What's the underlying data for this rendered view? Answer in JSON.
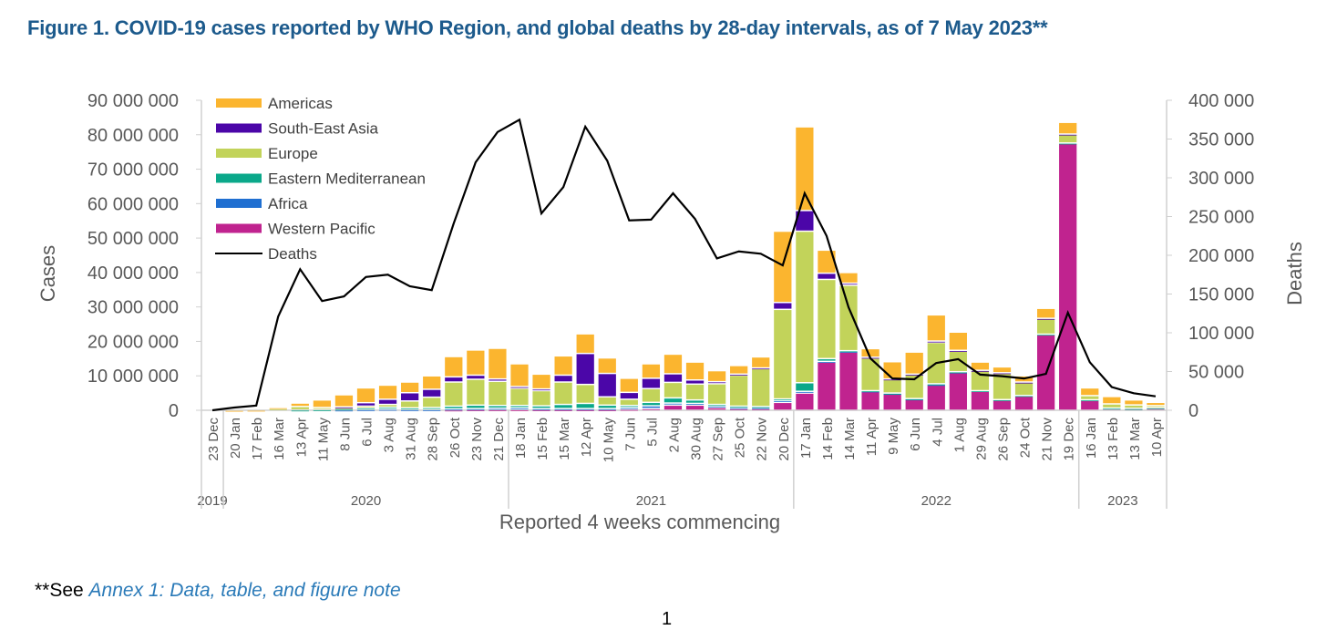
{
  "title": "Figure 1. COVID-19 cases reported by WHO Region, and global deaths by 28-day intervals, as of 7 May 2023**",
  "footnote": {
    "prefix": "**See ",
    "link": "Annex 1: Data, table, and figure note"
  },
  "page_number": "1",
  "chart_data": {
    "type": "bar",
    "stacked": true,
    "title": "Figure 1. COVID-19 cases reported by WHO Region, and global deaths by 28-day intervals, as of 7 May 2023**",
    "xlabel": "Reported 4 weeks commencing",
    "ylabel": "Cases",
    "y2label": "Deaths",
    "ylim": [
      0,
      90000000
    ],
    "y2lim": [
      0,
      400000
    ],
    "yticks": [
      "0",
      "10 000 000",
      "20 000 000",
      "30 000 000",
      "40 000 000",
      "50 000 000",
      "60 000 000",
      "70 000 000",
      "80 000 000",
      "90 000 000"
    ],
    "y2ticks": [
      "0",
      "50 000",
      "100 000",
      "150 000",
      "200 000",
      "250 000",
      "300 000",
      "350 000",
      "400 000"
    ],
    "legend_position": "top-left",
    "years": [
      {
        "label": "2019",
        "from": 0,
        "to": 0
      },
      {
        "label": "2020",
        "from": 1,
        "to": 13
      },
      {
        "label": "2021",
        "from": 14,
        "to": 26
      },
      {
        "label": "2022",
        "from": 27,
        "to": 39
      },
      {
        "label": "2023",
        "from": 40,
        "to": 43
      }
    ],
    "categories": [
      "23 Dec",
      "20 Jan",
      "17 Feb",
      "16 Mar",
      "13 Apr",
      "11 May",
      "8 Jun",
      "6 Jul",
      "3 Aug",
      "31 Aug",
      "28 Sep",
      "26 Oct",
      "23 Nov",
      "21 Dec",
      "18 Jan",
      "15 Feb",
      "15 Mar",
      "12 Apr",
      "10 May",
      "7 Jun",
      "5 Jul",
      "2 Aug",
      "30 Aug",
      "27 Sep",
      "25 Oct",
      "22 Nov",
      "20 Dec",
      "17 Jan",
      "14 Feb",
      "14 Mar",
      "11 Apr",
      "9 May",
      "6 Jun",
      "4 Jul",
      "1 Aug",
      "29 Aug",
      "26 Sep",
      "24 Oct",
      "21 Nov",
      "19 Dec",
      "16 Jan",
      "13 Feb",
      "13 Mar",
      "10 Apr"
    ],
    "unit_cases": "millions",
    "series": [
      {
        "name": "Western Pacific",
        "color": "#c0238f",
        "values": [
          0,
          0,
          0,
          0,
          0,
          0,
          0,
          0,
          0,
          0,
          0,
          0.1,
          0.2,
          0.2,
          0.2,
          0.2,
          0.2,
          0.2,
          0.2,
          0.3,
          0.5,
          1.5,
          1.5,
          0.8,
          0.5,
          0.5,
          2.3,
          5,
          14,
          17,
          5.5,
          4.8,
          3.2,
          7.4,
          11,
          5.6,
          3,
          4.2,
          22,
          77.5,
          3,
          0.6,
          0.5,
          0.7
        ]
      },
      {
        "name": "Africa",
        "color": "#1f6fd1",
        "values": [
          0,
          0,
          0,
          0,
          0,
          0,
          0.1,
          0.2,
          0.3,
          0.2,
          0.2,
          0.3,
          0.3,
          0.4,
          0.5,
          0.3,
          0.3,
          0.3,
          0.3,
          0.5,
          0.8,
          0.6,
          0.5,
          0.4,
          0.3,
          0.3,
          0.5,
          0.5,
          0.2,
          0.1,
          0.1,
          0.1,
          0.1,
          0.1,
          0.1,
          0,
          0,
          0,
          0,
          0,
          0,
          0,
          0,
          0
        ]
      },
      {
        "name": "Eastern Mediterranean",
        "color": "#0aa88a",
        "values": [
          0,
          0,
          0,
          0,
          0.1,
          0.2,
          0.4,
          0.5,
          0.6,
          0.5,
          0.6,
          0.8,
          1,
          0.8,
          0.7,
          0.8,
          1.2,
          1.5,
          1,
          0.6,
          1,
          1.5,
          1,
          0.5,
          0.4,
          0.3,
          0.5,
          2.5,
          0.8,
          0.2,
          0.1,
          0.1,
          0.1,
          0.2,
          0.1,
          0.1,
          0.1,
          0.1,
          0.1,
          0.1,
          0.05,
          0.05,
          0.05,
          0.05
        ]
      },
      {
        "name": "Europe",
        "color": "#c2d35a",
        "values": [
          0,
          0,
          0,
          0.5,
          1,
          0.6,
          0.3,
          0.5,
          0.8,
          2,
          3,
          7,
          7.5,
          7,
          5,
          4.4,
          6.5,
          5.5,
          2.4,
          1.8,
          4,
          4.5,
          4.6,
          6,
          9,
          11,
          26,
          44,
          23,
          19,
          9.5,
          4,
          7,
          12,
          6,
          5.8,
          7.7,
          3.8,
          4.5,
          2.5,
          1.2,
          1.2,
          1,
          0.6
        ]
      },
      {
        "name": "South-East Asia",
        "color": "#4b06a8",
        "values": [
          0,
          0,
          0,
          0,
          0,
          0,
          0.2,
          1,
          1.5,
          2.4,
          2.3,
          1.5,
          1.2,
          0.7,
          0.5,
          0.5,
          2,
          9,
          6.8,
          2,
          3,
          2.5,
          1.2,
          0.6,
          0.3,
          0.2,
          2,
          6,
          1.8,
          0.6,
          0.2,
          0.1,
          0.1,
          0.4,
          0.2,
          0.1,
          0.1,
          0.1,
          0.1,
          0.1,
          0,
          0,
          0,
          0
        ]
      },
      {
        "name": "Americas",
        "color": "#fbb52f",
        "values": [
          0,
          0.01,
          0.05,
          0.3,
          1,
          2.2,
          3.5,
          4.3,
          4.1,
          3.1,
          3.9,
          5.9,
          7.3,
          8.9,
          6.6,
          4.3,
          5.6,
          5.7,
          4.5,
          4.1,
          4.2,
          5.7,
          5.2,
          3.2,
          2.5,
          3.2,
          20.7,
          24.3,
          6.7,
          3.1,
          2.5,
          5,
          6.4,
          7.6,
          5.3,
          2.4,
          1.7,
          1.8,
          2.9,
          3.4,
          2.25,
          2.15,
          1.45,
          0.95
        ]
      }
    ],
    "legend_order": [
      "Americas",
      "South-East Asia",
      "Europe",
      "Eastern Mediterranean",
      "Africa",
      "Western Pacific",
      "Deaths"
    ],
    "deaths": {
      "name": "Deaths",
      "color": "#000000",
      "axis": "right",
      "values": [
        0,
        3500,
        6000,
        121000,
        182000,
        141000,
        147000,
        172000,
        175000,
        160000,
        155000,
        241000,
        320000,
        359000,
        375000,
        254000,
        288000,
        366000,
        322000,
        245000,
        246000,
        280000,
        247000,
        196000,
        205000,
        202000,
        187000,
        280000,
        225000,
        133000,
        67000,
        41000,
        40000,
        61000,
        66000,
        46000,
        44000,
        41000,
        47000,
        126000,
        62000,
        30000,
        22000,
        18000
      ]
    }
  }
}
